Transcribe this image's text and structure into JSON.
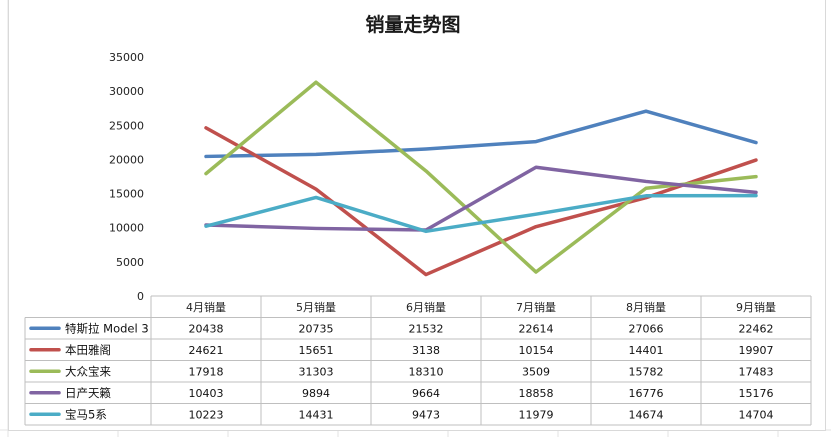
{
  "chart_data": {
    "type": "line",
    "title": "销量走势图",
    "categories": [
      "4月销量",
      "5月销量",
      "6月销量",
      "7月销量",
      "8月销量",
      "9月销量"
    ],
    "ylim": [
      0,
      35000
    ],
    "yticks": [
      0,
      5000,
      10000,
      15000,
      20000,
      25000,
      30000,
      35000
    ],
    "ytick_labels": [
      "0",
      "5000",
      "10000",
      "15000",
      "20000",
      "25000",
      "30000",
      "35000"
    ],
    "grid": false,
    "legend": "data-table-left",
    "series": [
      {
        "name": "特斯拉 Model 3",
        "color": "#4F81BD",
        "values": [
          20438,
          20735,
          21532,
          22614,
          27066,
          22462
        ],
        "labels": [
          "20438",
          "20735",
          "21532",
          "22614",
          "27066",
          "22462"
        ]
      },
      {
        "name": "本田雅阁",
        "color": "#C0504D",
        "values": [
          24621,
          15651,
          3138,
          10154,
          14401,
          19907
        ],
        "labels": [
          "24621",
          "15651",
          "3138",
          "10154",
          "14401",
          "19907"
        ]
      },
      {
        "name": "大众宝来",
        "color": "#9BBB59",
        "values": [
          17918,
          31303,
          18310,
          3509,
          15782,
          17483
        ],
        "labels": [
          "17918",
          "31303",
          "18310",
          "3509",
          "15782",
          "17483"
        ]
      },
      {
        "name": "日产天籁",
        "color": "#8064A2",
        "values": [
          10403,
          9894,
          9664,
          18858,
          16776,
          15176
        ],
        "labels": [
          "10403",
          "9894",
          "9664",
          "18858",
          "16776",
          "15176"
        ]
      },
      {
        "name": "宝马5系",
        "color": "#4BACC6",
        "values": [
          10223,
          14431,
          9473,
          11979,
          14674,
          14704
        ],
        "labels": [
          "10223",
          "14431",
          "9473",
          "11979",
          "14674",
          "14704"
        ]
      }
    ]
  }
}
